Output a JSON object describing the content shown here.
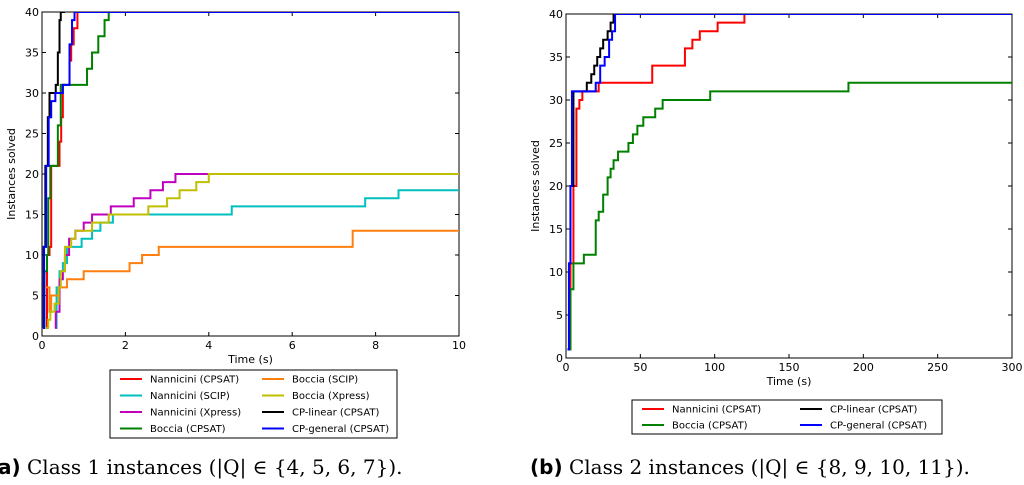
{
  "chart_data": [
    {
      "type": "line",
      "xlabel": "Time (s)",
      "ylabel": "Instances solved",
      "xlim": [
        0,
        10
      ],
      "ylim": [
        0,
        40
      ],
      "xticks": [
        0,
        2,
        4,
        6,
        8,
        10
      ],
      "yticks": [
        0,
        5,
        10,
        15,
        20,
        25,
        30,
        35,
        40
      ],
      "grid": false,
      "legend_position": "below",
      "series": [
        {
          "name": "Nannicini (CPSAT)",
          "color": "#ff0000",
          "points": [
            [
              0.1,
              1
            ],
            [
              0.12,
              10
            ],
            [
              0.18,
              11
            ],
            [
              0.22,
              21
            ],
            [
              0.4,
              21
            ],
            [
              0.42,
              24
            ],
            [
              0.46,
              27
            ],
            [
              0.5,
              31
            ],
            [
              0.62,
              31
            ],
            [
              0.66,
              34
            ],
            [
              0.7,
              36
            ],
            [
              0.76,
              38
            ],
            [
              0.85,
              40
            ],
            [
              0.95,
              40
            ]
          ]
        },
        {
          "name": "Nannicini (SCIP)",
          "color": "#00bfbf",
          "points": [
            [
              0.34,
              1
            ],
            [
              0.35,
              6
            ],
            [
              0.42,
              8
            ],
            [
              0.5,
              9
            ],
            [
              0.6,
              11
            ],
            [
              0.8,
              11
            ],
            [
              0.95,
              12
            ],
            [
              1.2,
              13
            ],
            [
              1.4,
              14
            ],
            [
              1.7,
              15
            ],
            [
              4.5,
              15
            ],
            [
              4.55,
              16
            ],
            [
              7.7,
              16
            ],
            [
              7.75,
              17
            ],
            [
              8.5,
              17
            ],
            [
              8.55,
              18
            ],
            [
              10,
              18
            ]
          ]
        },
        {
          "name": "Nannicini (Xpress)",
          "color": "#bf00bf",
          "points": [
            [
              0.31,
              1
            ],
            [
              0.33,
              3
            ],
            [
              0.42,
              7
            ],
            [
              0.5,
              8
            ],
            [
              0.55,
              10
            ],
            [
              0.65,
              12
            ],
            [
              0.8,
              13
            ],
            [
              1.0,
              14
            ],
            [
              1.2,
              15
            ],
            [
              1.6,
              15
            ],
            [
              1.65,
              16
            ],
            [
              2.2,
              17
            ],
            [
              2.6,
              18
            ],
            [
              2.9,
              19
            ],
            [
              3.2,
              20
            ],
            [
              10,
              20
            ]
          ]
        },
        {
          "name": "Boccia (CPSAT)",
          "color": "#008000",
          "points": [
            [
              0.04,
              1
            ],
            [
              0.06,
              8
            ],
            [
              0.12,
              10
            ],
            [
              0.15,
              17
            ],
            [
              0.2,
              21
            ],
            [
              0.35,
              21
            ],
            [
              0.38,
              26
            ],
            [
              0.45,
              31
            ],
            [
              1.0,
              31
            ],
            [
              1.08,
              33
            ],
            [
              1.2,
              35
            ],
            [
              1.35,
              37
            ],
            [
              1.5,
              39
            ],
            [
              1.6,
              40
            ],
            [
              1.75,
              40
            ]
          ]
        },
        {
          "name": "Boccia (SCIP)",
          "color": "#ff7f0e",
          "points": [
            [
              0.04,
              1
            ],
            [
              0.05,
              6
            ],
            [
              0.12,
              6
            ],
            [
              0.18,
              3
            ],
            [
              0.22,
              5
            ],
            [
              0.35,
              5
            ],
            [
              0.4,
              6
            ],
            [
              0.6,
              7
            ],
            [
              0.95,
              7
            ],
            [
              1.0,
              8
            ],
            [
              2.0,
              8
            ],
            [
              2.1,
              9
            ],
            [
              2.4,
              10
            ],
            [
              2.8,
              11
            ],
            [
              7.4,
              11
            ],
            [
              7.45,
              13
            ],
            [
              10,
              13
            ]
          ]
        },
        {
          "name": "Boccia (Xpress)",
          "color": "#bfbf00",
          "points": [
            [
              0.1,
              1
            ],
            [
              0.15,
              2
            ],
            [
              0.2,
              3
            ],
            [
              0.3,
              4
            ],
            [
              0.4,
              6
            ],
            [
              0.45,
              8
            ],
            [
              0.55,
              11
            ],
            [
              0.7,
              12
            ],
            [
              0.8,
              13
            ],
            [
              1.2,
              14
            ],
            [
              1.6,
              15
            ],
            [
              2.5,
              15
            ],
            [
              2.55,
              16
            ],
            [
              3.0,
              17
            ],
            [
              3.3,
              18
            ],
            [
              3.7,
              19
            ],
            [
              4.0,
              20
            ],
            [
              10,
              20
            ]
          ]
        },
        {
          "name": "CP-linear (CPSAT)",
          "color": "#000000",
          "points": [
            [
              0.02,
              1
            ],
            [
              0.04,
              11
            ],
            [
              0.08,
              21
            ],
            [
              0.14,
              27
            ],
            [
              0.18,
              30
            ],
            [
              0.3,
              30
            ],
            [
              0.33,
              31
            ],
            [
              0.38,
              35
            ],
            [
              0.42,
              39
            ],
            [
              0.45,
              40
            ],
            [
              0.55,
              40
            ]
          ]
        },
        {
          "name": "CP-general (CPSAT)",
          "color": "#0000ff",
          "points": [
            [
              0.03,
              1
            ],
            [
              0.05,
              11
            ],
            [
              0.1,
              21
            ],
            [
              0.16,
              27
            ],
            [
              0.22,
              29
            ],
            [
              0.28,
              29
            ],
            [
              0.32,
              30
            ],
            [
              0.5,
              31
            ],
            [
              0.62,
              31
            ],
            [
              0.66,
              36
            ],
            [
              0.72,
              39
            ],
            [
              0.78,
              40
            ],
            [
              10,
              40
            ]
          ]
        }
      ]
    },
    {
      "type": "line",
      "xlabel": "Time (s)",
      "ylabel": "Instances solved",
      "xlim": [
        0,
        300
      ],
      "ylim": [
        0,
        40
      ],
      "xticks": [
        0,
        50,
        100,
        150,
        200,
        250,
        300
      ],
      "yticks": [
        0,
        5,
        10,
        15,
        20,
        25,
        30,
        35,
        40
      ],
      "grid": false,
      "legend_position": "below",
      "series": [
        {
          "name": "Nannicini (CPSAT)",
          "color": "#ff0000",
          "points": [
            [
              2,
              1
            ],
            [
              3,
              11
            ],
            [
              5,
              20
            ],
            [
              7,
              29
            ],
            [
              9,
              30
            ],
            [
              11,
              31
            ],
            [
              20,
              31
            ],
            [
              22,
              32
            ],
            [
              55,
              32
            ],
            [
              58,
              34
            ],
            [
              77,
              34
            ],
            [
              80,
              36
            ],
            [
              85,
              37
            ],
            [
              90,
              38
            ],
            [
              100,
              38
            ],
            [
              102,
              39
            ],
            [
              118,
              39
            ],
            [
              120,
              40
            ],
            [
              300,
              40
            ]
          ]
        },
        {
          "name": "Boccia (CPSAT)",
          "color": "#008000",
          "points": [
            [
              2,
              1
            ],
            [
              3,
              8
            ],
            [
              5,
              11
            ],
            [
              10,
              11
            ],
            [
              12,
              12
            ],
            [
              18,
              12
            ],
            [
              20,
              16
            ],
            [
              22,
              17
            ],
            [
              25,
              19
            ],
            [
              28,
              21
            ],
            [
              30,
              22
            ],
            [
              32,
              23
            ],
            [
              35,
              24
            ],
            [
              40,
              24
            ],
            [
              42,
              25
            ],
            [
              45,
              26
            ],
            [
              48,
              27
            ],
            [
              52,
              28
            ],
            [
              58,
              28
            ],
            [
              60,
              29
            ],
            [
              65,
              30
            ],
            [
              95,
              30
            ],
            [
              97,
              31
            ],
            [
              188,
              31
            ],
            [
              190,
              32
            ],
            [
              300,
              32
            ]
          ]
        },
        {
          "name": "CP-linear (CPSAT)",
          "color": "#000000",
          "points": [
            [
              1,
              1
            ],
            [
              2,
              11
            ],
            [
              3,
              20
            ],
            [
              5,
              31
            ],
            [
              12,
              31
            ],
            [
              14,
              32
            ],
            [
              17,
              33
            ],
            [
              19,
              34
            ],
            [
              21,
              35
            ],
            [
              23,
              36
            ],
            [
              25,
              37
            ],
            [
              28,
              38
            ],
            [
              30,
              39
            ],
            [
              32,
              40
            ],
            [
              300,
              40
            ]
          ]
        },
        {
          "name": "CP-general (CPSAT)",
          "color": "#0000ff",
          "points": [
            [
              1,
              1
            ],
            [
              2,
              11
            ],
            [
              3,
              20
            ],
            [
              4,
              31
            ],
            [
              18,
              31
            ],
            [
              20,
              32
            ],
            [
              23,
              34
            ],
            [
              26,
              35
            ],
            [
              29,
              37
            ],
            [
              31,
              38
            ],
            [
              33,
              40
            ],
            [
              300,
              40
            ]
          ]
        }
      ]
    }
  ],
  "captions": [
    {
      "tag": "a)",
      "text": "Class 1 instances (|Q| ∈ {4, 5, 6, 7})."
    },
    {
      "tag": "(b)",
      "text": "Class 2 instances (|Q| ∈ {8, 9, 10, 11})."
    }
  ]
}
